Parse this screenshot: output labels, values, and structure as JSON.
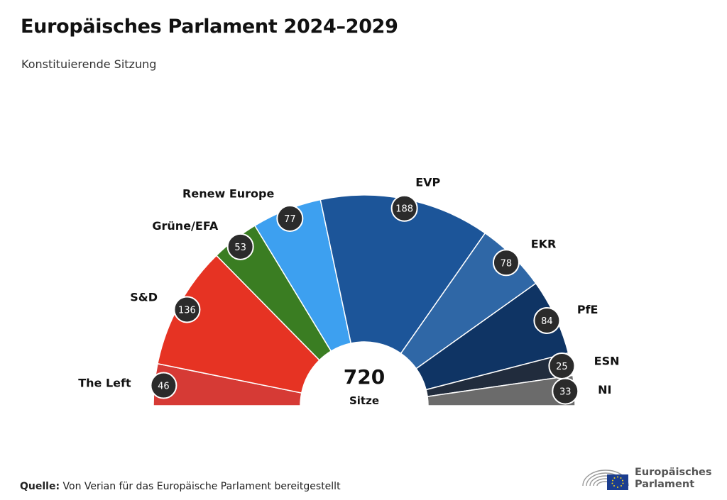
{
  "header": {
    "title": "Europäisches Parlament 2024–2029",
    "subtitle": "Konstituierende Sitzung"
  },
  "chart_data": {
    "type": "pie",
    "layout": "parliament-semicircle",
    "total_value": "720",
    "total_label": "Sitze",
    "series": [
      {
        "name": "The Left",
        "value": 46,
        "color": "#d63a35"
      },
      {
        "name": "S&D",
        "value": 136,
        "color": "#e63323"
      },
      {
        "name": "Grüne/EFA",
        "value": 53,
        "color": "#3a7d22"
      },
      {
        "name": "Renew Europe",
        "value": 77,
        "color": "#3da0f0"
      },
      {
        "name": "EVP",
        "value": 188,
        "color": "#1c5599"
      },
      {
        "name": "EKR",
        "value": 78,
        "color": "#2f67a6"
      },
      {
        "name": "PfE",
        "value": 84,
        "color": "#0f3464"
      },
      {
        "name": "ESN",
        "value": 25,
        "color": "#212c3d"
      },
      {
        "name": "NI",
        "value": 33,
        "color": "#6b6b6b"
      }
    ]
  },
  "footer": {
    "source_label": "Quelle:",
    "source_text": "Von Verian für das Europäische Parlament bereitgestellt",
    "logo_line1": "Europäisches",
    "logo_line2": "Parlament"
  }
}
